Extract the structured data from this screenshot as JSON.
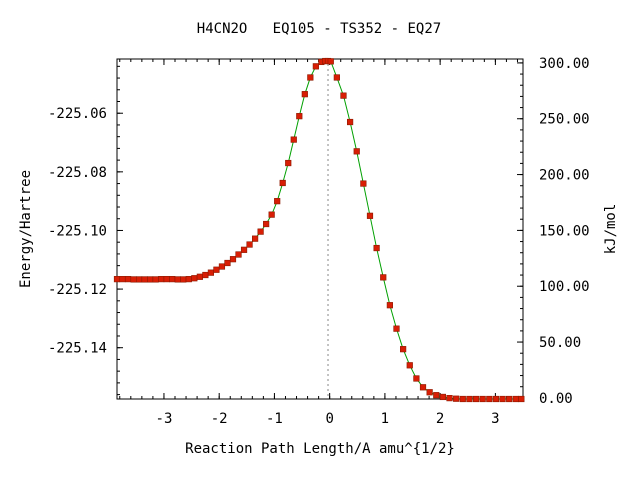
{
  "chart_data": {
    "type": "line",
    "title": "H4CN2O   EQ105 - TS352 - EQ27",
    "xlabel": "Reaction Path Length/A amu^{1/2}",
    "ylabel": "Energy/Hartree",
    "y2label": "kJ/mol",
    "xlim": [
      -3.85,
      3.5
    ],
    "ylim": [
      -225.1575,
      -225.0415
    ],
    "y2lim": [
      -1.0,
      303.5
    ],
    "x_ticks": [
      -3,
      -2,
      -1,
      0,
      1,
      2,
      3
    ],
    "x_tick_labels": [
      "-3",
      "-2",
      "-1",
      "0",
      "1",
      "2",
      "3"
    ],
    "y_ticks": [
      -225.06,
      -225.08,
      -225.1,
      -225.12,
      -225.14
    ],
    "y_tick_labels": [
      "-225.06",
      "-225.08",
      "-225.10",
      "-225.12",
      "-225.14"
    ],
    "y2_ticks": [
      300,
      250,
      200,
      150,
      100,
      50,
      0
    ],
    "y2_tick_labels": [
      "300.00",
      "250.00",
      "200.00",
      "150.00",
      "100.00",
      "50.00",
      "0.00"
    ],
    "ts_marker_x": -0.03,
    "grid": false,
    "colors": {
      "line": "#00a000",
      "marker": "#d81e05",
      "marker_edge": "#8b1a00",
      "ts_line": "#888888"
    },
    "series": [
      {
        "x": [
          -3.85,
          -3.75,
          -3.65,
          -3.55,
          -3.45,
          -3.35,
          -3.25,
          -3.15,
          -3.05,
          -2.95,
          -2.85,
          -2.75,
          -2.65,
          -2.55,
          -2.45,
          -2.35,
          -2.25,
          -2.15,
          -2.05,
          -1.95,
          -1.85,
          -1.75,
          -1.65,
          -1.55,
          -1.45,
          -1.35,
          -1.25,
          -1.15,
          -1.05,
          -0.95,
          -0.85,
          -0.75,
          -0.65,
          -0.55,
          -0.45,
          -0.35,
          -0.25,
          -0.15,
          -0.08,
          -0.03,
          0.02,
          0.13,
          0.25,
          0.37,
          0.49,
          0.61,
          0.73,
          0.85,
          0.97,
          1.09,
          1.21,
          1.33,
          1.45,
          1.57,
          1.69,
          1.81,
          1.93,
          2.05,
          2.17,
          2.29,
          2.41,
          2.53,
          2.65,
          2.77,
          2.89,
          3.01,
          3.13,
          3.25,
          3.37,
          3.47
        ],
        "y": [
          -225.1166,
          -225.1166,
          -225.1166,
          -225.1167,
          -225.1167,
          -225.1167,
          -225.1167,
          -225.1167,
          -225.1166,
          -225.1166,
          -225.1166,
          -225.1167,
          -225.1167,
          -225.1166,
          -225.1163,
          -225.1158,
          -225.1152,
          -225.1144,
          -225.1134,
          -225.1123,
          -225.1111,
          -225.1098,
          -225.1082,
          -225.1066,
          -225.1048,
          -225.1028,
          -225.1004,
          -225.0978,
          -225.0946,
          -225.09,
          -225.0838,
          -225.077,
          -225.069,
          -225.061,
          -225.0535,
          -225.0478,
          -225.044,
          -225.0425,
          -225.0422,
          -225.0422,
          -225.0423,
          -225.0478,
          -225.054,
          -225.063,
          -225.073,
          -225.084,
          -225.095,
          -225.106,
          -225.116,
          -225.1255,
          -225.1335,
          -225.1405,
          -225.146,
          -225.1505,
          -225.1535,
          -225.1552,
          -225.1562,
          -225.1568,
          -225.1572,
          -225.1574,
          -225.1575,
          -225.1575,
          -225.1575,
          -225.1575,
          -225.1575,
          -225.1575,
          -225.1575,
          -225.1575,
          -225.1575,
          -225.1575
        ]
      }
    ]
  }
}
